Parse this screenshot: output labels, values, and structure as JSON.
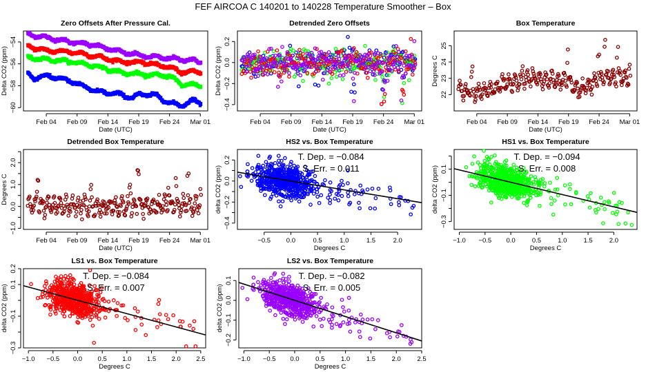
{
  "title": "FEF   AIRCOA C   140201 to 140228   Temperature Smoother – Box",
  "colors": {
    "blue": "#0000ff",
    "red": "#ff0000",
    "green": "#00ff00",
    "purple": "#9900ff",
    "darkred": "#8b0000",
    "fit_line": "#000000"
  },
  "chart_data": [
    {
      "id": "zero-offsets",
      "type": "line",
      "title": "Zero Offsets After Pressure Cal.",
      "xlabel": "Date (UTC)",
      "ylabel": "Delta CO2 (ppm)",
      "x_ticks": [
        "Feb 04",
        "Feb 09",
        "Feb 14",
        "Feb 19",
        "Feb 24",
        "Mar 01"
      ],
      "x_tick_days": [
        4,
        9,
        14,
        19,
        24,
        29
      ],
      "xlim_days": [
        0.3,
        30.2
      ],
      "y_ticks": [
        -54,
        -56,
        -58,
        -60
      ],
      "ylim": [
        -60.3,
        -53.0
      ],
      "series": [
        {
          "name": "purple",
          "color": "purple",
          "x_days": [
            1,
            4,
            8,
            12,
            16,
            20,
            24,
            28,
            29
          ],
          "values": [
            -53.3,
            -53.6,
            -54.0,
            -54.3,
            -54.9,
            -55.3,
            -55.5,
            -55.7,
            -55.8
          ]
        },
        {
          "name": "red",
          "color": "red",
          "x_days": [
            1,
            4,
            8,
            12,
            16,
            20,
            24,
            26,
            28,
            29
          ],
          "values": [
            -54.4,
            -54.8,
            -54.9,
            -55.3,
            -55.8,
            -55.9,
            -56.3,
            -56.8,
            -56.7,
            -56.8
          ]
        },
        {
          "name": "green",
          "color": "green",
          "x_days": [
            1,
            4,
            8,
            12,
            16,
            20,
            24,
            26,
            28,
            29
          ],
          "values": [
            -55.4,
            -55.6,
            -55.8,
            -56.2,
            -56.8,
            -57.0,
            -57.1,
            -57.9,
            -57.9,
            -58.0
          ]
        },
        {
          "name": "blue",
          "color": "blue",
          "x_days": [
            1,
            2,
            4,
            6,
            8,
            12,
            16,
            18,
            19,
            20,
            22,
            24,
            25,
            26,
            28,
            29
          ],
          "values": [
            -56.9,
            -57.3,
            -57.1,
            -57.3,
            -57.6,
            -58.5,
            -58.8,
            -59.1,
            -58.8,
            -58.8,
            -58.9,
            -59.6,
            -59.7,
            -59.8,
            -59.3,
            -59.6
          ]
        }
      ]
    },
    {
      "id": "detrended-zero-offsets",
      "type": "scatter",
      "title": "Detrended Zero Offsets",
      "xlabel": "Date (UTC)",
      "ylabel": "Delta CO2 (ppm)",
      "x_ticks": [
        "Feb 04",
        "Feb 09",
        "Feb 14",
        "Feb 19",
        "Feb 24",
        "Mar 01"
      ],
      "x_tick_days": [
        4,
        9,
        14,
        19,
        24,
        29
      ],
      "xlim_days": [
        0.3,
        30.2
      ],
      "y_ticks": [
        "0.2",
        "0.0",
        "−0.2",
        "−0.4"
      ],
      "y_tick_values": [
        0.2,
        0.0,
        -0.2,
        -0.4
      ],
      "ylim": [
        -0.46,
        0.3
      ],
      "series_colors": [
        "blue",
        "green",
        "red",
        "purple"
      ],
      "spread_sd": 0.06,
      "outlier_days": [
        19,
        24,
        27
      ]
    },
    {
      "id": "box-temperature",
      "type": "scatter",
      "title": "Box Temperature",
      "xlabel": "Date (UTC)",
      "ylabel": "Degrees C",
      "x_ticks": [
        "Feb 04",
        "Feb 09",
        "Feb 14",
        "Feb 19",
        "Feb 24",
        "Mar 01"
      ],
      "x_tick_days": [
        4,
        9,
        14,
        19,
        24,
        29
      ],
      "xlim_days": [
        0.3,
        30.2
      ],
      "y_ticks": [
        "22",
        "23",
        "24",
        "25"
      ],
      "y_tick_values": [
        22,
        23,
        24,
        25
      ],
      "ylim": [
        21.0,
        25.9
      ],
      "color": "darkred",
      "baseline_days": [
        1,
        3,
        5,
        7,
        9,
        11,
        13,
        15,
        17,
        19,
        21,
        23,
        25,
        27,
        29
      ],
      "baseline_values": [
        22.3,
        22.2,
        22.2,
        22.4,
        22.7,
        22.8,
        23.0,
        22.9,
        22.9,
        22.8,
        22.2,
        22.7,
        23.1,
        23.0,
        23.1
      ],
      "peaks": [
        [
          3.2,
          23.8
        ],
        [
          11.5,
          23.8
        ],
        [
          18.9,
          24.8
        ],
        [
          23.9,
          24.5
        ],
        [
          25.0,
          25.8
        ],
        [
          27.0,
          25.0
        ],
        [
          29.0,
          23.9
        ]
      ]
    },
    {
      "id": "detrended-box-temperature",
      "type": "scatter",
      "title": "Detrended Box Temperature",
      "xlabel": "Date (UTC)",
      "ylabel": "Degrees C",
      "x_ticks": [
        "Feb 04",
        "Feb 09",
        "Feb 14",
        "Feb 19",
        "Feb 24",
        "Mar 01"
      ],
      "x_tick_days": [
        4,
        9,
        14,
        19,
        24,
        29
      ],
      "xlim_days": [
        0.3,
        30.2
      ],
      "y_ticks": [
        "−1.0",
        "0.0",
        "1.0",
        "2.0"
      ],
      "y_tick_values": [
        -1.0,
        0.0,
        1.0,
        2.0
      ],
      "y_minor": [
        -0.5,
        0.5,
        1.5,
        2.5
      ],
      "ylim": [
        -1.05,
        2.6
      ],
      "color": "darkred",
      "peaks": [
        [
          2.6,
          1.7
        ],
        [
          11.3,
          1.3
        ],
        [
          17.6,
          1.1
        ],
        [
          18.9,
          1.7
        ],
        [
          23.9,
          1.7
        ],
        [
          25.0,
          2.5
        ],
        [
          27.0,
          2.1
        ],
        [
          29.0,
          0.8
        ]
      ]
    },
    {
      "id": "hs2-vs-box-temperature",
      "type": "scatter",
      "title": "HS2 vs. Box Temperature",
      "xlabel": "Degrees C",
      "ylabel": "delta CO2 (ppm)",
      "x_ticks": [
        "−0.5",
        "0.0",
        "0.5",
        "1.0",
        "1.5",
        "2.0"
      ],
      "x_tick_values": [
        -0.5,
        0.0,
        0.5,
        1.0,
        1.5,
        2.0
      ],
      "xlim": [
        -1.0,
        2.45
      ],
      "y_ticks": [
        "0.2",
        "0.0",
        "−0.2",
        "−0.4"
      ],
      "y_tick_values": [
        0.2,
        0.0,
        -0.2,
        -0.4
      ],
      "y_minor": [
        0.1,
        -0.1,
        -0.3
      ],
      "ylim": [
        -0.46,
        0.3
      ],
      "color": "blue",
      "fit": {
        "slope": -0.084,
        "intercept": 0.0
      },
      "annotation": [
        "T. Dep. =  −0.084",
        "S. Err. =  0.011"
      ]
    },
    {
      "id": "hs1-vs-box-temperature",
      "type": "scatter",
      "title": "HS1 vs. Box Temperature",
      "xlabel": "Degrees C",
      "ylabel": "delta CO2 (ppm)",
      "x_ticks": [
        "−1.0",
        "−0.5",
        "0.0",
        "0.5",
        "1.0",
        "1.5",
        "2.0"
      ],
      "x_tick_values": [
        -1.0,
        -0.5,
        0.0,
        0.5,
        1.0,
        1.5,
        2.0
      ],
      "xlim": [
        -1.1,
        2.45
      ],
      "y_ticks": [
        "0.1",
        "−0.1",
        "−0.3"
      ],
      "y_tick_values": [
        0.1,
        -0.1,
        -0.3
      ],
      "y_minor": [
        0.2,
        0.0,
        -0.2
      ],
      "ylim": [
        -0.36,
        0.25
      ],
      "color": "green",
      "fit": {
        "slope": -0.094,
        "intercept": 0.0
      },
      "annotation": [
        "T. Dep. =  −0.094",
        "S. Err. =  0.008"
      ]
    },
    {
      "id": "ls1-vs-box-temperature",
      "type": "scatter",
      "title": "LS1 vs. Box Temperature",
      "xlabel": "Degrees C",
      "ylabel": "delta CO2 (ppm)",
      "x_ticks": [
        "−1.0",
        "−0.5",
        "0.0",
        "0.5",
        "1.0",
        "1.5",
        "2.0",
        "2.5"
      ],
      "x_tick_values": [
        -1.0,
        -0.5,
        0.0,
        0.5,
        1.0,
        1.5,
        2.0,
        2.5
      ],
      "xlim": [
        -1.1,
        2.6
      ],
      "y_ticks": [
        "0.2",
        "0.1",
        "−0.1",
        "−0.3"
      ],
      "y_tick_values": [
        0.2,
        0.1,
        -0.1,
        -0.3
      ],
      "y_minor": [
        0.0,
        -0.2
      ],
      "ylim": [
        -0.3,
        0.2
      ],
      "color": "red",
      "fit": {
        "slope": -0.084,
        "intercept": 0.0
      },
      "annotation": [
        "T. Dep. =  −0.084",
        "S. Err. =  0.007"
      ]
    },
    {
      "id": "ls2-vs-box-temperature",
      "type": "scatter",
      "title": "LS2 vs. Box Temperature",
      "xlabel": "Degrees C",
      "ylabel": "delta CO2 (ppm)",
      "x_ticks": [
        "−1.0",
        "−0.5",
        "0.0",
        "0.5",
        "1.0",
        "1.5",
        "2.0",
        "2.5"
      ],
      "x_tick_values": [
        -1.0,
        -0.5,
        0.0,
        0.5,
        1.0,
        1.5,
        2.0,
        2.5
      ],
      "xlim": [
        -1.1,
        2.5
      ],
      "y_ticks": [
        "0.1",
        "0.0",
        "−0.1",
        "−0.2"
      ],
      "y_tick_values": [
        0.1,
        0.0,
        -0.1,
        -0.2
      ],
      "ylim": [
        -0.24,
        0.16
      ],
      "color": "purple",
      "fit": {
        "slope": -0.082,
        "intercept": 0.0
      },
      "annotation": [
        "T. Dep. =  −0.082",
        "S. Err. =  0.005"
      ]
    }
  ]
}
